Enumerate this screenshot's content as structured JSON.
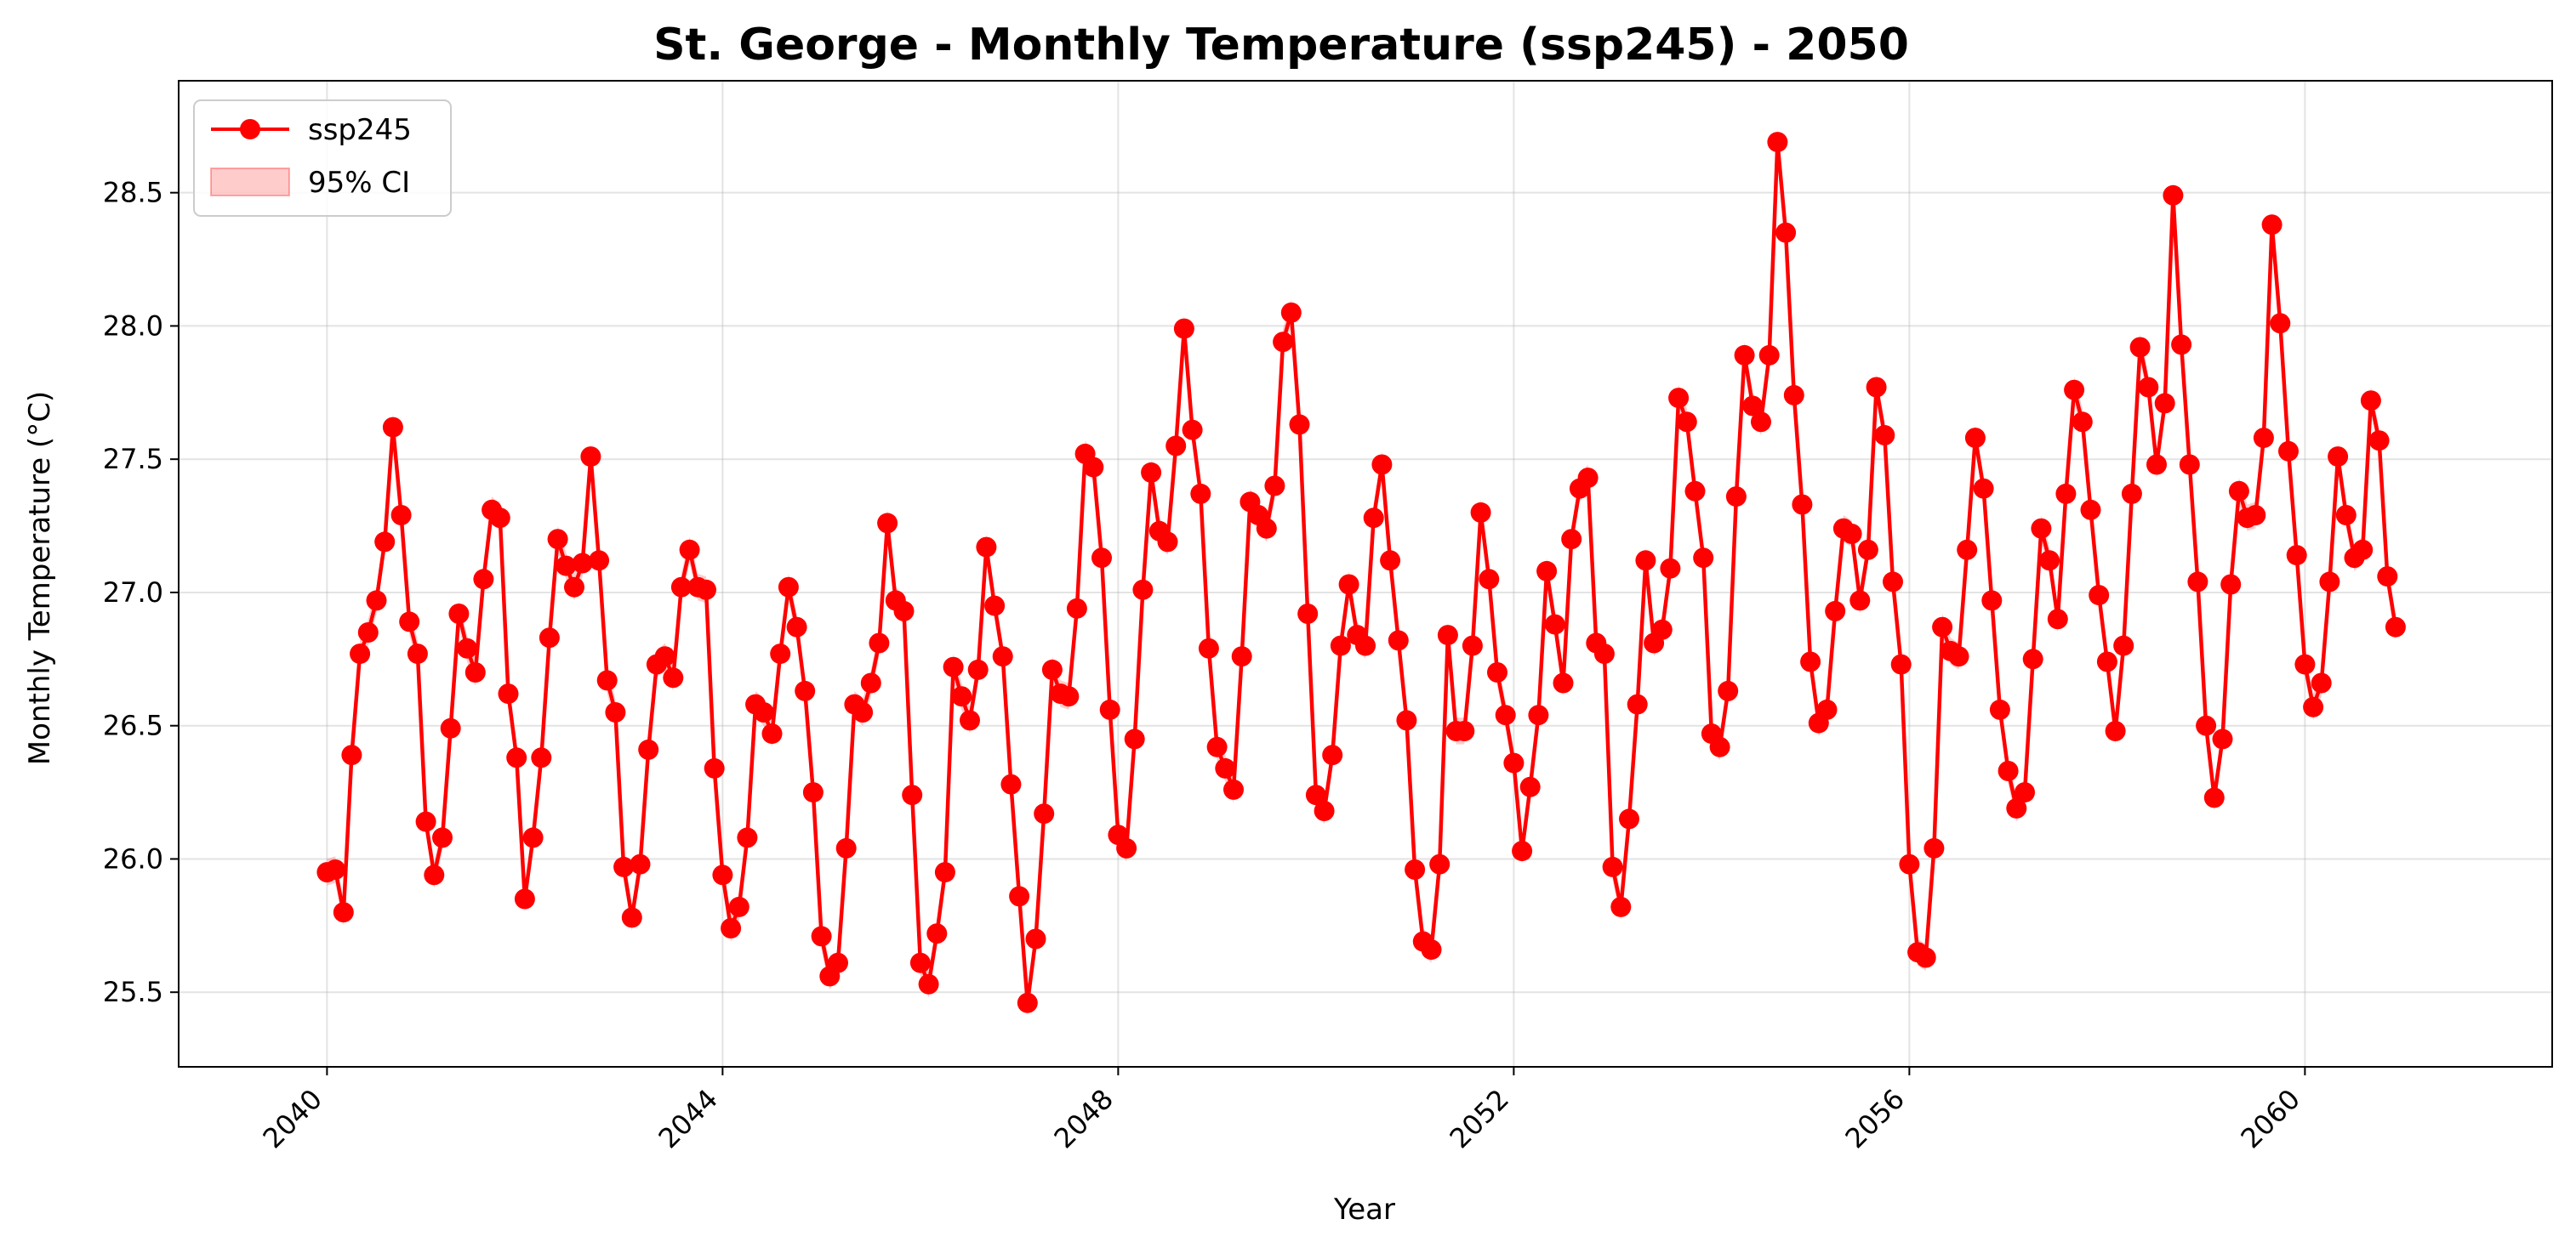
{
  "chart_data": {
    "type": "line",
    "title": "St. George - Monthly Temperature (ssp245) - 2050",
    "xlabel": "Year",
    "ylabel": "Monthly Temperature (°C)",
    "xlim": [
      2038.5,
      2062.5
    ],
    "ylim": [
      25.22,
      28.92
    ],
    "x_ticks": [
      2040,
      2044,
      2048,
      2052,
      2056,
      2060
    ],
    "x_tick_labels": [
      "2040",
      "2044",
      "2048",
      "2052",
      "2056",
      "2060"
    ],
    "y_ticks": [
      25.5,
      26.0,
      26.5,
      27.0,
      27.5,
      28.0,
      28.5
    ],
    "y_tick_labels": [
      "25.5",
      "26.0",
      "26.5",
      "27.0",
      "27.5",
      "28.0",
      "28.5"
    ],
    "grid": true,
    "legend_position": "top-left",
    "x_start": "2040-01",
    "x_step": "1 month",
    "series": [
      {
        "name": "ssp245",
        "color": "#ff0000",
        "marker": "circle",
        "values": [
          25.95,
          25.96,
          25.8,
          26.39,
          26.77,
          26.85,
          26.97,
          27.19,
          27.62,
          27.29,
          26.89,
          26.77,
          26.14,
          25.94,
          26.08,
          26.49,
          26.92,
          26.79,
          26.7,
          27.05,
          27.31,
          27.28,
          26.62,
          26.38,
          25.85,
          26.08,
          26.38,
          26.83,
          27.2,
          27.1,
          27.02,
          27.11,
          27.51,
          27.12,
          26.67,
          26.55,
          25.97,
          25.78,
          25.98,
          26.41,
          26.73,
          26.76,
          26.68,
          27.02,
          27.16,
          27.02,
          27.01,
          26.34,
          25.94,
          25.74,
          25.82,
          26.08,
          26.58,
          26.55,
          26.47,
          26.77,
          27.02,
          26.87,
          26.63,
          26.25,
          25.71,
          25.56,
          25.61,
          26.04,
          26.58,
          26.55,
          26.66,
          26.81,
          27.26,
          26.97,
          26.93,
          26.24,
          25.61,
          25.53,
          25.72,
          25.95,
          26.72,
          26.61,
          26.52,
          26.71,
          27.17,
          26.95,
          26.76,
          26.28,
          25.86,
          25.46,
          25.7,
          26.17,
          26.71,
          26.62,
          26.61,
          26.94,
          27.52,
          27.47,
          27.13,
          26.56,
          26.09,
          26.04,
          26.45,
          27.01,
          27.45,
          27.23,
          27.19,
          27.55,
          27.99,
          27.61,
          27.37,
          26.79,
          26.42,
          26.34,
          26.26,
          26.76,
          27.34,
          27.29,
          27.24,
          27.4,
          27.94,
          28.05,
          27.63,
          26.92,
          26.24,
          26.18,
          26.39,
          26.8,
          27.03,
          26.84,
          26.8,
          27.28,
          27.48,
          27.12,
          26.82,
          26.52,
          25.96,
          25.69,
          25.66,
          25.98,
          26.84,
          26.48,
          26.48,
          26.8,
          27.3,
          27.05,
          26.7,
          26.54,
          26.36,
          26.03,
          26.27,
          26.54,
          27.08,
          26.88,
          26.66,
          27.2,
          27.39,
          27.43,
          26.81,
          26.77,
          25.97,
          25.82,
          26.15,
          26.58,
          27.12,
          26.81,
          26.86,
          27.09,
          27.73,
          27.64,
          27.38,
          27.13,
          26.47,
          26.42,
          26.63,
          27.36,
          27.89,
          27.7,
          27.64,
          27.89,
          28.69,
          28.35,
          27.74,
          27.33,
          26.74,
          26.51,
          26.56,
          26.93,
          27.24,
          27.22,
          26.97,
          27.16,
          27.77,
          27.59,
          27.04,
          26.73,
          25.98,
          25.65,
          25.63,
          26.04,
          26.87,
          26.78,
          26.76,
          27.16,
          27.58,
          27.39,
          26.97,
          26.56,
          26.33,
          26.19,
          26.25,
          26.75,
          27.24,
          27.12,
          26.9,
          27.37,
          27.76,
          27.64,
          27.31,
          26.99,
          26.74,
          26.48,
          26.8,
          27.37,
          27.92,
          27.77,
          27.48,
          27.71,
          28.49,
          27.93,
          27.48,
          27.04,
          26.5,
          26.23,
          26.45,
          27.03,
          27.38,
          27.28,
          27.29,
          27.58,
          28.38,
          28.01,
          27.53,
          27.14,
          26.73,
          26.57,
          26.66,
          27.04,
          27.51,
          27.29,
          27.13,
          27.16,
          27.72,
          27.57,
          27.06,
          26.87
        ]
      }
    ],
    "band": {
      "name": "95% CI",
      "color": "#ff0000",
      "opacity": 0.2,
      "half_width": 0.05
    }
  }
}
